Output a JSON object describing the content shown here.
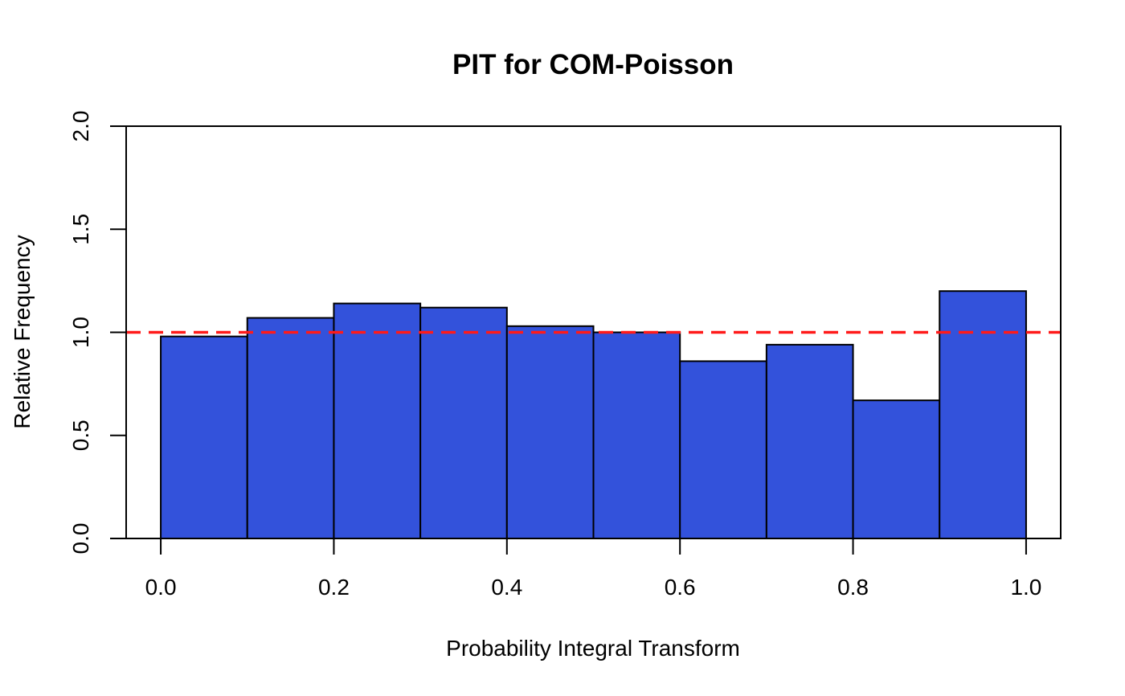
{
  "chart_data": {
    "type": "bar",
    "title": "PIT for COM-Poisson",
    "xlabel": "Probability Integral Transform",
    "ylabel": "Relative Frequency",
    "xlim": [
      -0.04,
      1.04
    ],
    "ylim": [
      0,
      2.0
    ],
    "x_ticks": [
      "0.0",
      "0.2",
      "0.4",
      "0.6",
      "0.8",
      "1.0"
    ],
    "y_ticks": [
      "0.0",
      "0.5",
      "1.0",
      "1.5",
      "2.0"
    ],
    "bins": [
      {
        "start": 0.0,
        "end": 0.1,
        "value": 0.98
      },
      {
        "start": 0.1,
        "end": 0.2,
        "value": 1.07
      },
      {
        "start": 0.2,
        "end": 0.3,
        "value": 1.14
      },
      {
        "start": 0.3,
        "end": 0.4,
        "value": 1.12
      },
      {
        "start": 0.4,
        "end": 0.5,
        "value": 1.03
      },
      {
        "start": 0.5,
        "end": 0.6,
        "value": 1.0
      },
      {
        "start": 0.6,
        "end": 0.7,
        "value": 0.86
      },
      {
        "start": 0.7,
        "end": 0.8,
        "value": 0.94
      },
      {
        "start": 0.8,
        "end": 0.9,
        "value": 0.67
      },
      {
        "start": 0.9,
        "end": 1.0,
        "value": 1.2
      }
    ],
    "reference_line": {
      "y": 1.0,
      "style": "dashed"
    },
    "grid": false,
    "legend": "none",
    "colors": {
      "bar_fill": "#3352db",
      "bar_stroke": "#000000",
      "reference_line": "#ff1a1a"
    }
  }
}
